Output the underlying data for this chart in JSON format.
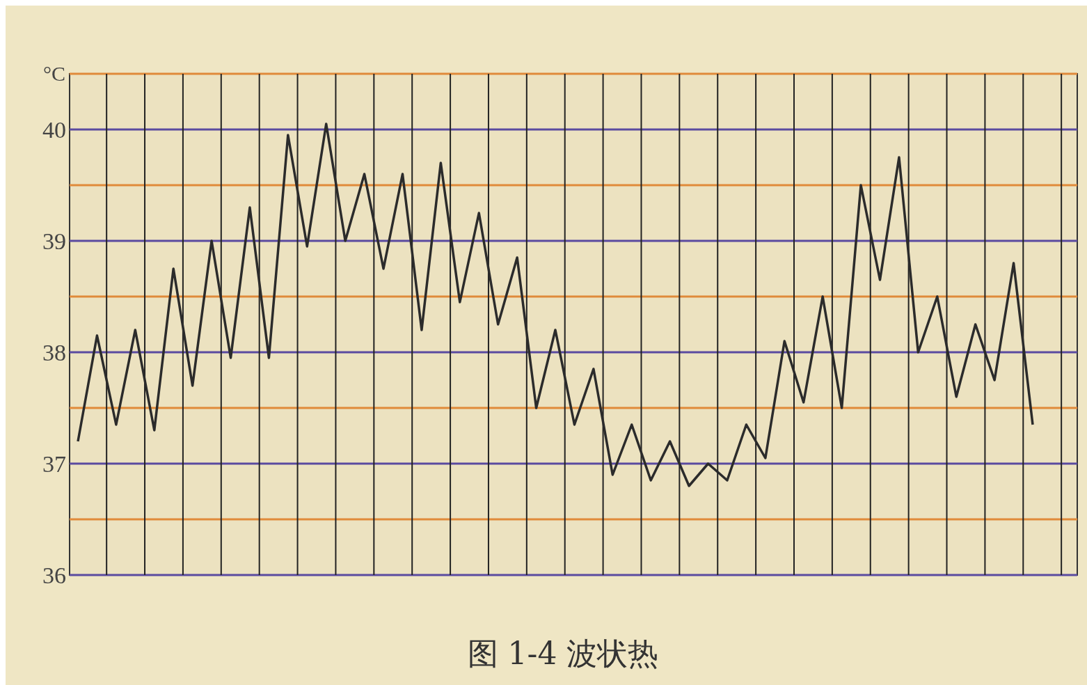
{
  "chart_data": {
    "type": "line",
    "title": "图 1-4  波状热",
    "ylabel": "°C",
    "categories": [
      null,
      null,
      null,
      null,
      null,
      null,
      null,
      null,
      null,
      null,
      null,
      null,
      null,
      null,
      null,
      null,
      null,
      null,
      null,
      null,
      null,
      null,
      null,
      null,
      null,
      null,
      null,
      null,
      null,
      null,
      null,
      null,
      null,
      null,
      null,
      null,
      null,
      null,
      null,
      null,
      null,
      null,
      null,
      null,
      null,
      null,
      null,
      null,
      null,
      null,
      null
    ],
    "series": [
      {
        "color": "#2b2b2b",
        "values": [
          37.2,
          38.15,
          37.35,
          38.2,
          37.3,
          38.75,
          37.7,
          39,
          37.95,
          39.3,
          37.95,
          39.95,
          38.95,
          40.05,
          39,
          39.6,
          38.75,
          39.6,
          38.2,
          39.7,
          38.45,
          39.25,
          38.25,
          38.85,
          37.5,
          38.2,
          37.35,
          37.85,
          36.9,
          37.35,
          36.85,
          37.2,
          36.8,
          37,
          36.85,
          37.35,
          37.05,
          38.1,
          37.55,
          38.5,
          37.5,
          39.5,
          38.65,
          39.75,
          38,
          38.5,
          37.6,
          38.25,
          37.75,
          38.8,
          37.35
        ]
      }
    ],
    "ylim": [
      36,
      40.5
    ],
    "yticks": [
      36,
      {
        "value": 36.5,
        "label": null
      },
      37,
      {
        "value": 37.5,
        "label": null
      },
      38,
      {
        "value": 38.5,
        "label": null
      },
      39,
      {
        "value": 39.5,
        "label": null
      },
      40,
      {
        "value": 40.5,
        "label": null
      }
    ],
    "grid": true,
    "marker": "none",
    "line_style": "solid"
  }
}
